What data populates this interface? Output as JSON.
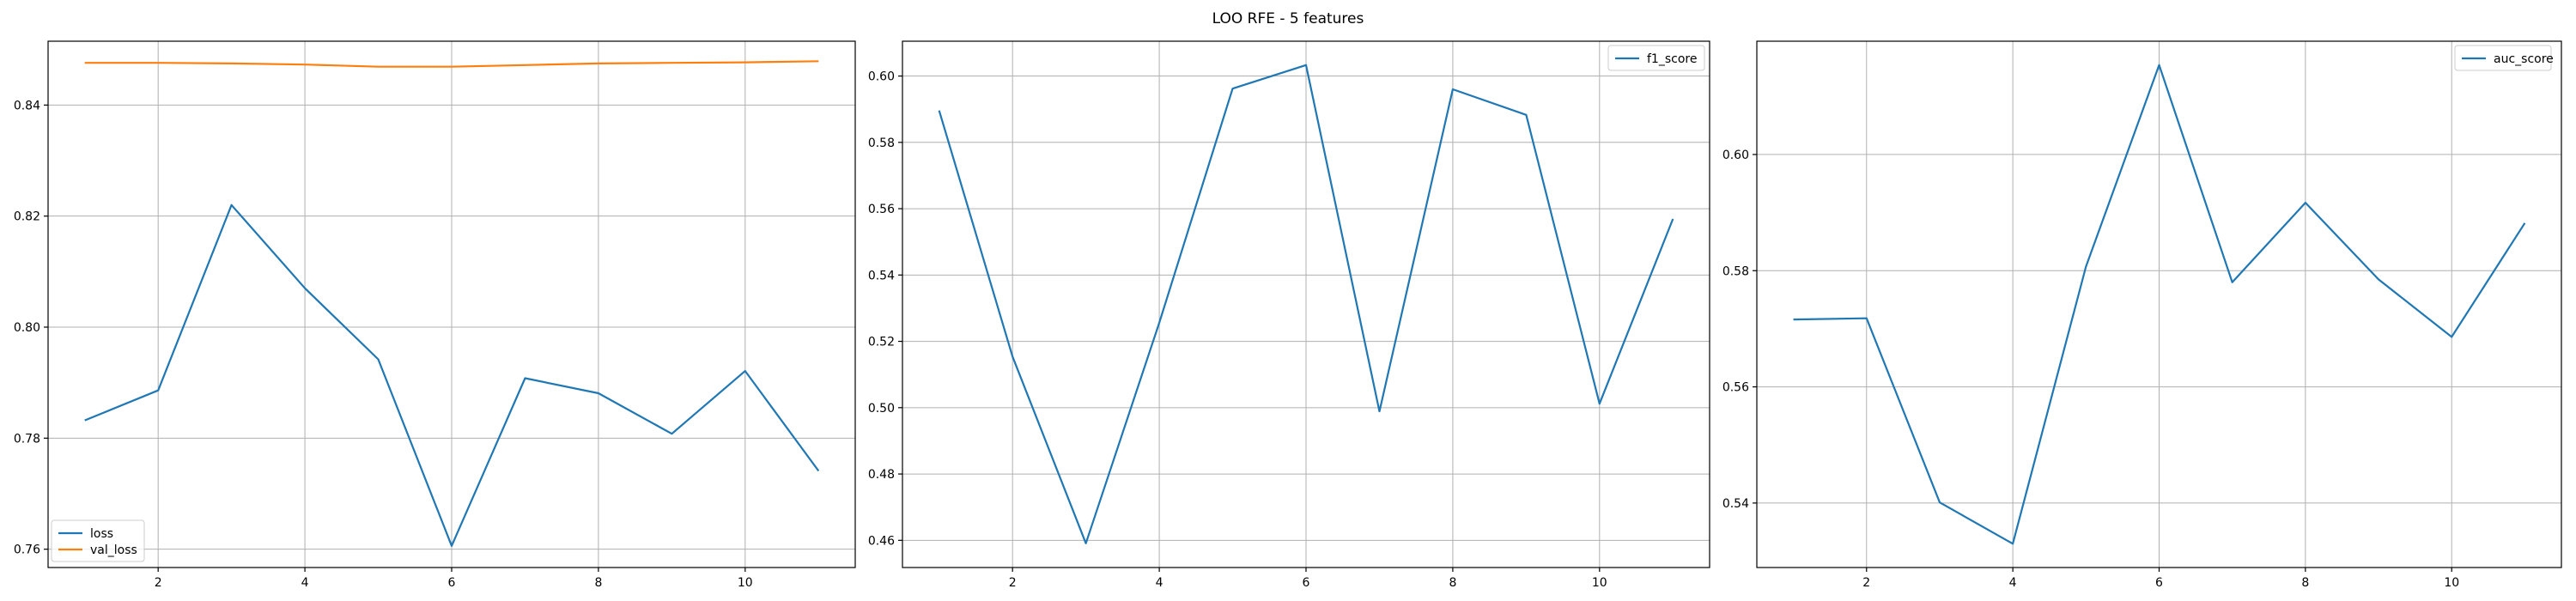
{
  "figure": {
    "suptitle": "LOO RFE - 5 features"
  },
  "colors": {
    "series_blue": "#1f77b4",
    "series_orange": "#ff7f0e",
    "grid": "#b0b0b0",
    "axes": "#000000"
  },
  "chart_data": [
    {
      "type": "line",
      "x": [
        1,
        2,
        3,
        4,
        5,
        6,
        7,
        8,
        9,
        10,
        11
      ],
      "series": [
        {
          "name": "loss",
          "color": "#1f77b4",
          "values": [
            0.7832,
            0.7886,
            0.822,
            0.807,
            0.7942,
            0.7606,
            0.7908,
            0.7881,
            0.7808,
            0.7921,
            0.7741
          ]
        },
        {
          "name": "val_loss",
          "color": "#ff7f0e",
          "values": [
            0.8476,
            0.8476,
            0.8475,
            0.8473,
            0.8469,
            0.8469,
            0.8472,
            0.8475,
            0.8476,
            0.8477,
            0.8479
          ]
        }
      ],
      "xlim": [
        0.5,
        11.5
      ],
      "ylim": [
        0.7567,
        0.8515
      ],
      "xticks": [
        2,
        4,
        6,
        8,
        10
      ],
      "yticks": [
        0.76,
        0.78,
        0.8,
        0.82,
        0.84
      ],
      "ytick_labels": [
        "0.76",
        "0.78",
        "0.80",
        "0.82",
        "0.84"
      ],
      "grid": true,
      "legend_loc": "lower-left"
    },
    {
      "type": "line",
      "x": [
        1,
        2,
        3,
        4,
        5,
        6,
        7,
        8,
        9,
        10,
        11
      ],
      "series": [
        {
          "name": "f1_score",
          "color": "#1f77b4",
          "values": [
            0.5896,
            0.5154,
            0.4591,
            0.5256,
            0.5962,
            0.6033,
            0.4989,
            0.596,
            0.5883,
            0.5012,
            0.5569
          ]
        }
      ],
      "xlim": [
        0.5,
        11.5
      ],
      "ylim": [
        0.4518,
        0.6105
      ],
      "xticks": [
        2,
        4,
        6,
        8,
        10
      ],
      "yticks": [
        0.46,
        0.48,
        0.5,
        0.52,
        0.54,
        0.56,
        0.58,
        0.6
      ],
      "ytick_labels": [
        "0.46",
        "0.48",
        "0.50",
        "0.52",
        "0.54",
        "0.56",
        "0.58",
        "0.60"
      ],
      "grid": true,
      "legend_loc": "upper-right"
    },
    {
      "type": "line",
      "x": [
        1,
        2,
        3,
        4,
        5,
        6,
        7,
        8,
        9,
        10,
        11
      ],
      "series": [
        {
          "name": "auc_score",
          "color": "#1f77b4",
          "values": [
            0.5716,
            0.5718,
            0.5401,
            0.533,
            0.5807,
            0.6154,
            0.578,
            0.5917,
            0.5785,
            0.5686,
            0.5882
          ]
        }
      ],
      "xlim": [
        0.5,
        11.5
      ],
      "ylim": [
        0.5289,
        0.6195
      ],
      "xticks": [
        2,
        4,
        6,
        8,
        10
      ],
      "yticks": [
        0.54,
        0.56,
        0.58,
        0.6
      ],
      "ytick_labels": [
        "0.54",
        "0.56",
        "0.58",
        "0.60"
      ],
      "grid": true,
      "legend_loc": "upper-right"
    }
  ]
}
